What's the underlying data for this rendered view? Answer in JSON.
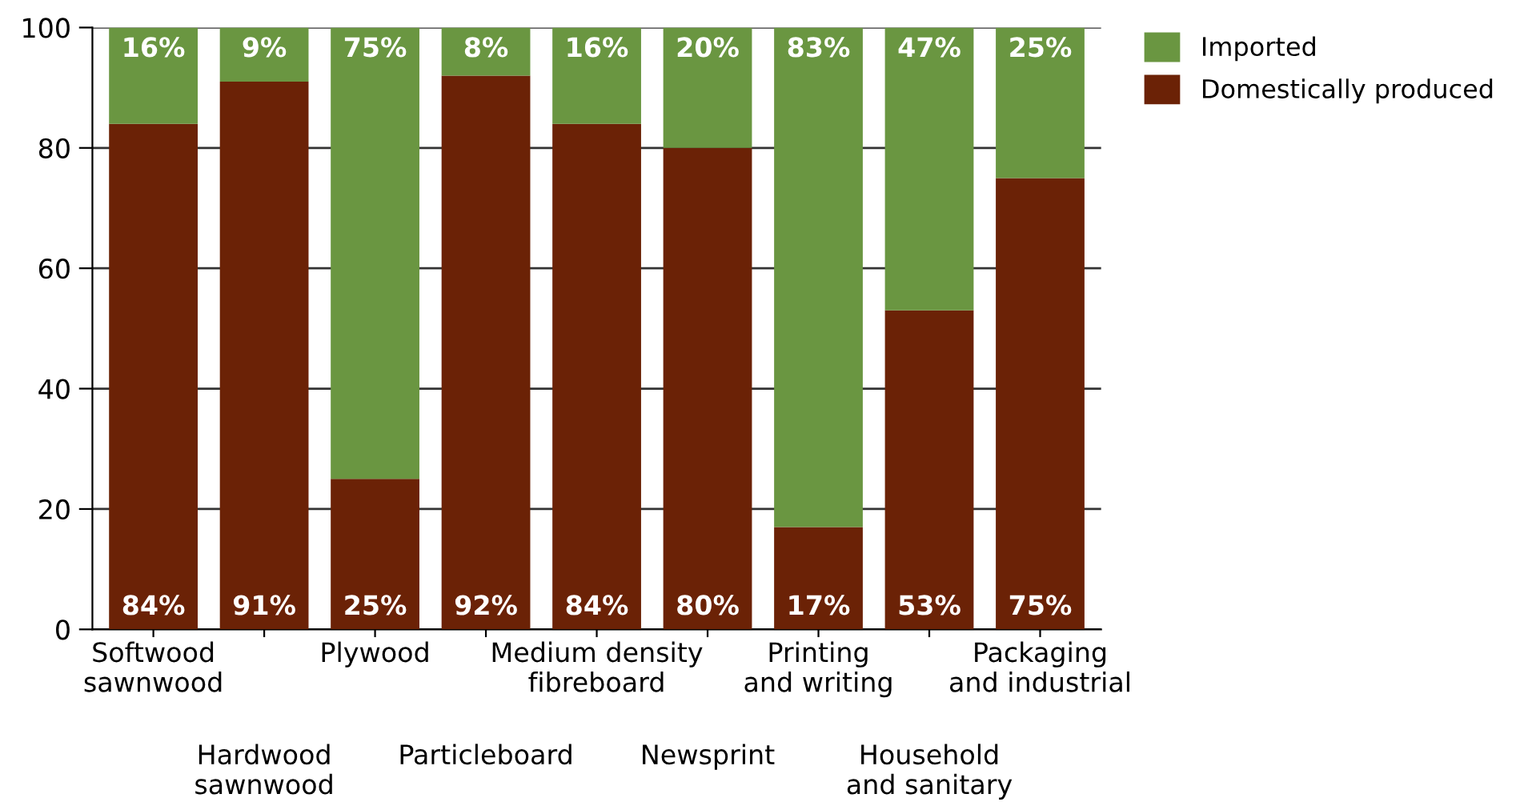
{
  "chart_data": {
    "type": "bar",
    "stacked": true,
    "categories": [
      "Softwood\nsawnwood",
      "Hardwood\nsawnwood",
      "Plywood",
      "Particleboard",
      "Medium density\nfibreboard",
      "Newsprint",
      "Printing\nand writing",
      "Household\nand sanitary",
      "Packaging\nand industrial"
    ],
    "series": [
      {
        "name": "Domestically produced",
        "color": "#6b2206",
        "values": [
          84,
          91,
          25,
          92,
          84,
          80,
          17,
          53,
          75
        ],
        "value_labels": [
          "84%",
          "91%",
          "25%",
          "92%",
          "84%",
          "80%",
          "17%",
          "53%",
          "75%"
        ]
      },
      {
        "name": "Imported",
        "color": "#6a9641",
        "values": [
          16,
          9,
          75,
          8,
          16,
          20,
          83,
          47,
          25
        ],
        "value_labels": [
          "16%",
          "9%",
          "75%",
          "8%",
          "16%",
          "20%",
          "83%",
          "47%",
          "25%"
        ]
      }
    ],
    "ylim": [
      0,
      100
    ],
    "yticks": [
      0,
      20,
      40,
      60,
      80,
      100
    ],
    "grid": "y",
    "legend": "top right"
  }
}
